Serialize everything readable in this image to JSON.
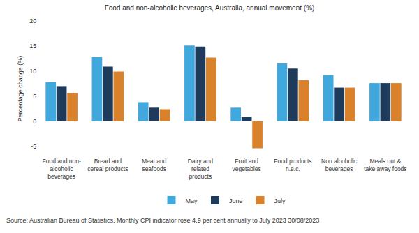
{
  "chart_data": {
    "type": "bar",
    "title": "Food and non-alcoholic beverages, Australia, annual movement (%)",
    "y_label": "Percentage change (%)",
    "annotations": [
      "Source: Australian Bureau of Statistics, Monthly CPI indicator rose 4.9 per cent annually to July 2023 30/08/2023"
    ],
    "categories": [
      "Food and non-alcoholic beverages",
      "Bread and cereal products",
      "Meat and seafoods",
      "Dairy and related products",
      "Fruit and vegetables",
      "Food products n.e.c.",
      "Non alcoholic beverages",
      "Meals out & take away foods"
    ],
    "series": [
      {
        "name": "May",
        "color": "#41a8dd",
        "values": [
          7.8,
          12.8,
          3.8,
          15.1,
          2.7,
          11.5,
          9.2,
          7.6
        ]
      },
      {
        "name": "June",
        "color": "#1f3b5c",
        "values": [
          7.0,
          10.9,
          2.7,
          14.9,
          0.9,
          10.5,
          6.7,
          7.6
        ]
      },
      {
        "name": "July",
        "color": "#d9822b",
        "values": [
          5.6,
          9.9,
          2.4,
          12.7,
          -5.4,
          8.2,
          6.7,
          7.6
        ]
      }
    ],
    "ylim": [
      -7,
      20
    ],
    "yticks": [
      -5,
      0,
      5,
      10,
      15,
      20
    ],
    "grid": false,
    "legend": "bottom"
  }
}
